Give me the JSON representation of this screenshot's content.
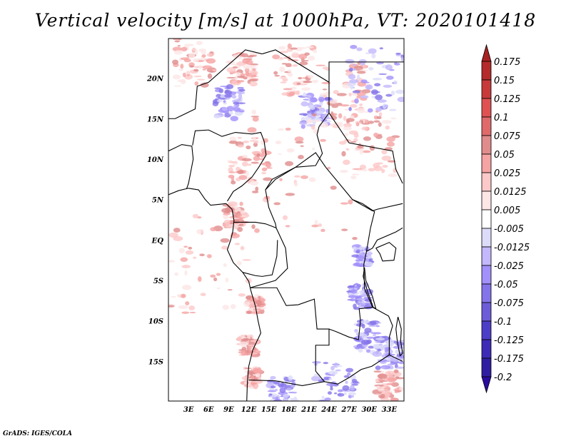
{
  "title": "Vertical velocity [m/s] at 1000hPa, VT: 2020101418",
  "credit": "GrADS: IGES/COLA",
  "chart_data": {
    "type": "heatmap",
    "title": "Vertical velocity [m/s] at 1000hPa, VT: 2020101418",
    "variable": "Vertical velocity",
    "units": "m/s",
    "level": "1000hPa",
    "valid_time": "2020101418",
    "lon_range": [
      0,
      35.2
    ],
    "lat_range": [
      -19.9,
      24.9
    ],
    "x_ticks": [
      {
        "v": 3,
        "label": "3E"
      },
      {
        "v": 6,
        "label": "6E"
      },
      {
        "v": 9,
        "label": "9E"
      },
      {
        "v": 12,
        "label": "12E"
      },
      {
        "v": 15,
        "label": "15E"
      },
      {
        "v": 18,
        "label": "18E"
      },
      {
        "v": 21,
        "label": "21E"
      },
      {
        "v": 24,
        "label": "24E"
      },
      {
        "v": 27,
        "label": "27E"
      },
      {
        "v": 30,
        "label": "30E"
      },
      {
        "v": 33,
        "label": "33E"
      }
    ],
    "y_ticks": [
      {
        "v": 20,
        "label": "20N"
      },
      {
        "v": 15,
        "label": "15N"
      },
      {
        "v": 10,
        "label": "10N"
      },
      {
        "v": 5,
        "label": "5N"
      },
      {
        "v": 0,
        "label": "EQ"
      },
      {
        "v": -5,
        "label": "5S"
      },
      {
        "v": -10,
        "label": "10S"
      },
      {
        "v": -15,
        "label": "15S"
      }
    ],
    "colorbar": {
      "levels": [
        "0.175",
        "0.15",
        "0.125",
        "0.1",
        "0.075",
        "0.05",
        "0.025",
        "0.0125",
        "0.005",
        "-0.005",
        "-0.0125",
        "-0.025",
        "-0.05",
        "-0.075",
        "-0.1",
        "-0.125",
        "-0.175",
        "-0.2"
      ],
      "colors": [
        "#a82222",
        "#b52a2a",
        "#c83a3a",
        "#e05252",
        "#e06a6a",
        "#e08c8c",
        "#f5a3a3",
        "#fdc8c8",
        "#fde6e6",
        "#ffffff",
        "#dcdcfa",
        "#c2b8fb",
        "#a290fb",
        "#8474ea",
        "#6c5cd8",
        "#4d3ec8",
        "#3d2ab6",
        "#2f1ea2",
        "#2a0ca0"
      ]
    }
  }
}
